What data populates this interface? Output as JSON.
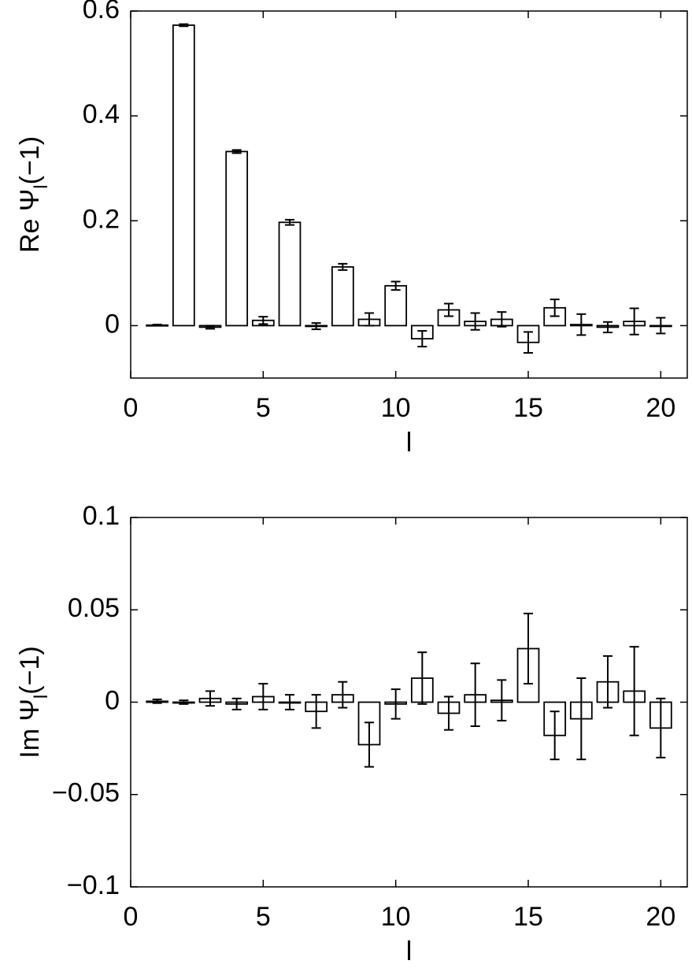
{
  "chart_data": [
    {
      "type": "bar",
      "x_label": "l",
      "y_label": [
        "Re Ψ",
        "l",
        "(−1)"
      ],
      "x": [
        1,
        2,
        3,
        4,
        5,
        6,
        7,
        8,
        9,
        10,
        11,
        12,
        13,
        14,
        15,
        16,
        17,
        18,
        19,
        20
      ],
      "values": [
        0.001,
        0.573,
        -0.003,
        0.332,
        0.01,
        0.197,
        -0.001,
        0.112,
        0.012,
        0.076,
        -0.025,
        0.03,
        0.008,
        0.012,
        -0.032,
        0.034,
        0.002,
        -0.003,
        0.008,
        0.0
      ],
      "errors": [
        0.001,
        0.002,
        0.003,
        0.003,
        0.007,
        0.005,
        0.006,
        0.006,
        0.012,
        0.008,
        0.015,
        0.012,
        0.016,
        0.014,
        0.02,
        0.016,
        0.02,
        0.01,
        0.025,
        0.015
      ],
      "color": "#ffffff",
      "xlim": [
        0,
        21
      ],
      "xticks": [
        0,
        5,
        10,
        15,
        20
      ],
      "ylim": [
        -0.1,
        0.6
      ],
      "yticks": [
        0,
        0.2,
        0.4,
        0.6
      ]
    },
    {
      "type": "bar",
      "x_label": "l",
      "y_label": [
        "Im Ψ",
        "l",
        "(−1)"
      ],
      "x": [
        1,
        2,
        3,
        4,
        5,
        6,
        7,
        8,
        9,
        10,
        11,
        12,
        13,
        14,
        15,
        16,
        17,
        18,
        19,
        20
      ],
      "values": [
        0.0005,
        0.0,
        0.002,
        -0.001,
        0.003,
        0.0,
        -0.005,
        0.004,
        -0.023,
        -0.001,
        0.013,
        -0.006,
        0.004,
        0.001,
        0.029,
        -0.018,
        -0.009,
        0.011,
        0.006,
        -0.014
      ],
      "errors": [
        0.001,
        0.001,
        0.004,
        0.003,
        0.007,
        0.004,
        0.009,
        0.007,
        0.012,
        0.008,
        0.014,
        0.009,
        0.017,
        0.011,
        0.019,
        0.013,
        0.022,
        0.014,
        0.024,
        0.016
      ],
      "color": "#ffffff",
      "xlim": [
        0,
        21
      ],
      "xticks": [
        0,
        5,
        10,
        15,
        20
      ],
      "ylim": [
        -0.1,
        0.1
      ],
      "yticks": [
        {
          "value": -0.1,
          "label": "−0.1"
        },
        {
          "value": -0.05,
          "label": "−0.05"
        },
        0,
        0.05,
        0.1
      ]
    }
  ]
}
